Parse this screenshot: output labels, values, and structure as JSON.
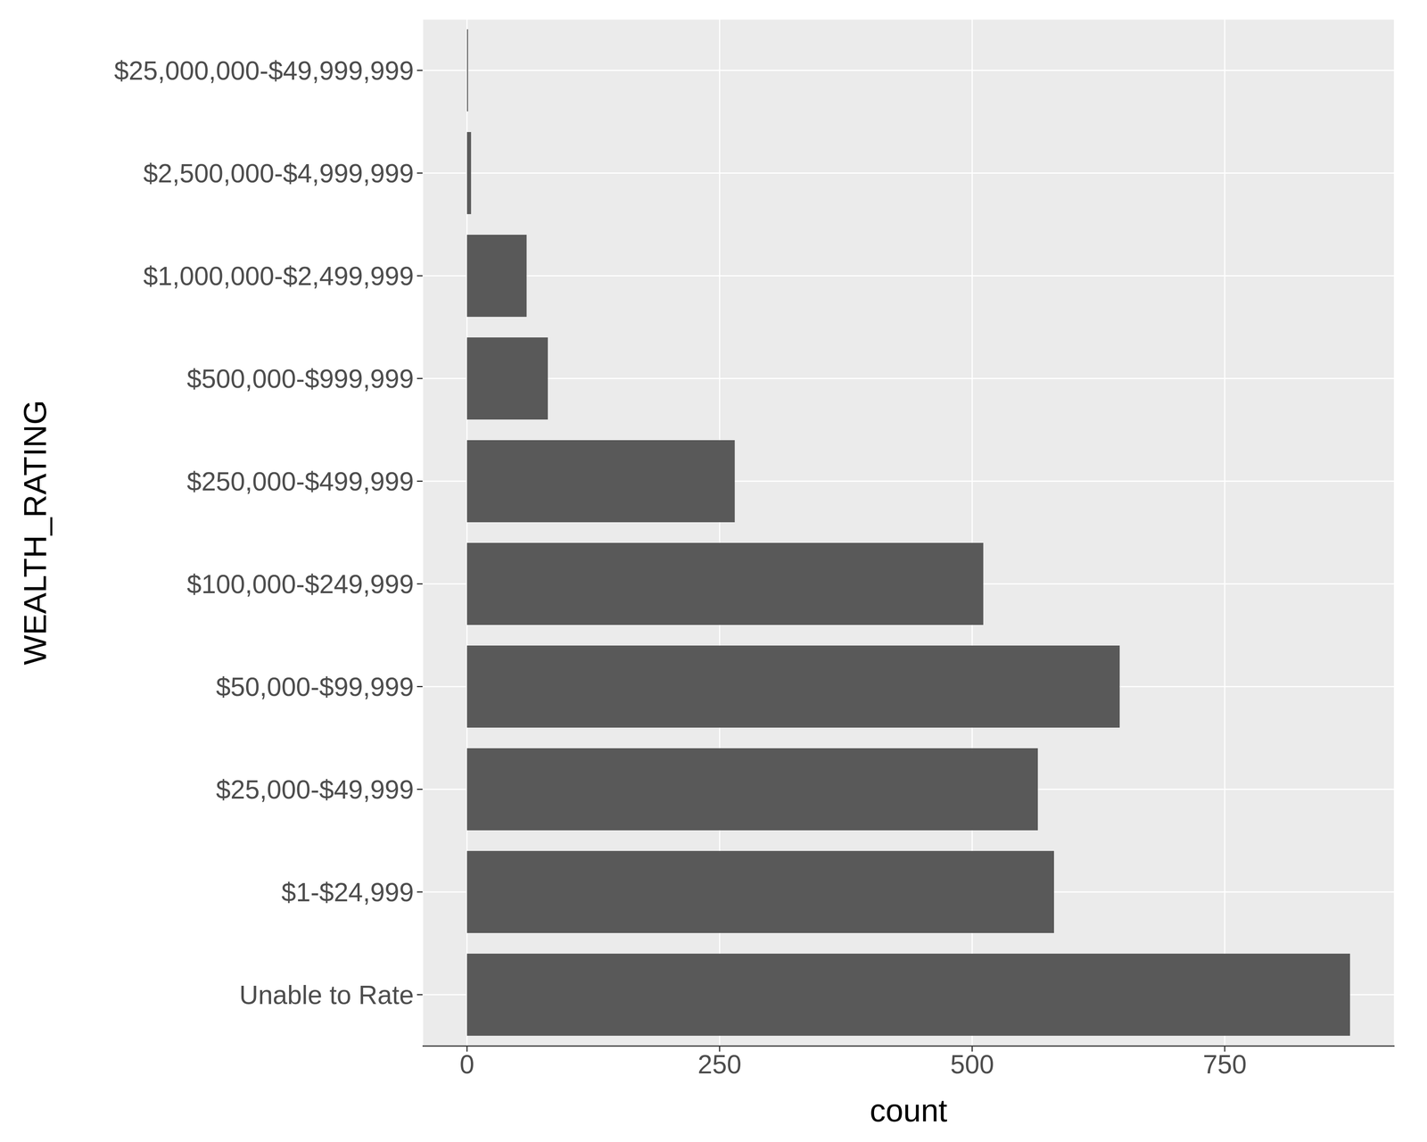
{
  "chart_data": {
    "type": "bar",
    "orientation": "horizontal",
    "x_label": "count",
    "y_label": "WEALTH_RATING",
    "categories": [
      "Unable to Rate",
      "$1-$24,999",
      "$25,000-$49,999",
      "$50,000-$99,999",
      "$100,000-$249,999",
      "$250,000-$499,999",
      "$500,000-$999,999",
      "$1,000,000-$2,499,999",
      "$2,500,000-$4,999,999",
      "$25,000,000-$49,999,999"
    ],
    "values": [
      874,
      581,
      565,
      646,
      511,
      265,
      80,
      59,
      4,
      1
    ],
    "color": "#595959",
    "xlim": [
      -44,
      918
    ],
    "xticks": [
      0,
      250,
      500,
      750
    ],
    "grid": true
  }
}
